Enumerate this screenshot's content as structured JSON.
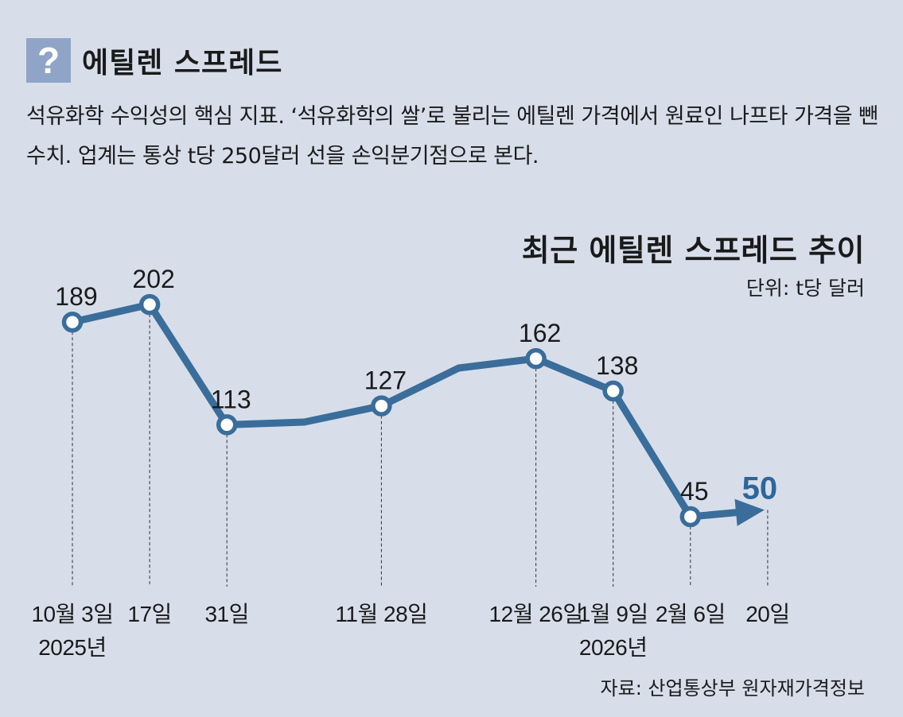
{
  "header": {
    "icon_char": "?",
    "title": "에틸렌 스프레드"
  },
  "description": "석유화학 수익성의 핵심 지표. ‘석유화학의 쌀’로 불리는 에틸렌 가격에서 원료인 나프타 가격을 뺀 수치. 업계는 통상 t당 250달러 선을 손익분기점으로 본다.",
  "chart_title": "최근 에틸렌 스프레드 추이",
  "unit": "단위: t당 달러",
  "source": "자료: 산업통상부 원자재가격정보",
  "colors": {
    "background": "#d7deea",
    "line": "#3a6d9a",
    "accent": "#2e6699",
    "icon_box": "#8fa4c7"
  },
  "chart_data": {
    "type": "line",
    "title": "최근 에틸렌 스프레드 추이",
    "ylabel": "단위: t당 달러",
    "points": [
      {
        "date": "2025-10-03",
        "value": 189,
        "label": "189",
        "tick": [
          "10월 3일",
          "2025년"
        ],
        "marker": true
      },
      {
        "date": "2025-10-17",
        "value": 202,
        "label": "202",
        "tick": [
          "17일"
        ],
        "marker": true
      },
      {
        "date": "2025-10-31",
        "value": 113,
        "label": "113",
        "tick": [
          "31일"
        ],
        "marker": true
      },
      {
        "date": "2025-11-14",
        "value": 115,
        "label": null,
        "tick": null,
        "marker": false
      },
      {
        "date": "2025-11-28",
        "value": 127,
        "label": "127",
        "tick": [
          "11월 28일"
        ],
        "marker": true
      },
      {
        "date": "2025-12-12",
        "value": 155,
        "label": null,
        "tick": null,
        "marker": false
      },
      {
        "date": "2025-12-26",
        "value": 162,
        "label": "162",
        "tick": [
          "12월 26일"
        ],
        "marker": true
      },
      {
        "date": "2026-01-09",
        "value": 138,
        "label": "138",
        "tick": [
          "1월 9일",
          "2026년"
        ],
        "marker": true
      },
      {
        "date": "2026-02-06",
        "value": 45,
        "label": "45",
        "tick": [
          "2월 6일"
        ],
        "marker": true
      },
      {
        "date": "2026-02-20",
        "value": 50,
        "label": "50",
        "tick": [
          "20일"
        ],
        "marker": false,
        "arrow": true,
        "highlight": true
      }
    ],
    "grid": false,
    "legend": "none"
  }
}
